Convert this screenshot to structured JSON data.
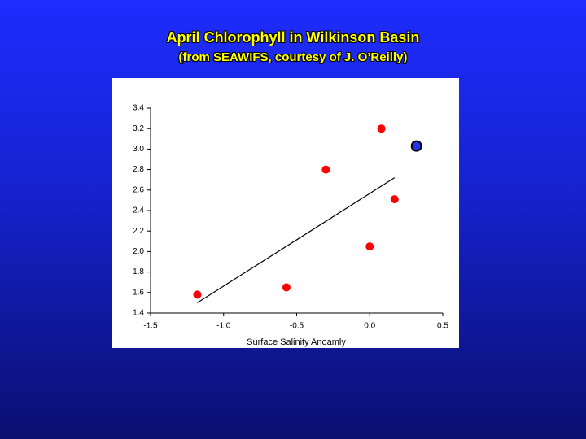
{
  "chart_data": {
    "type": "scatter",
    "title": "April Chlorophyll in Wilkinson Basin",
    "subtitle": "(from SEAWIFS, courtesy of J. O’Reilly)",
    "x_label": "Surface Salinity Anoamly",
    "xlim": [
      -1.5,
      0.5
    ],
    "xticks": [
      -1.5,
      {
        "value": -1,
        "label": "-1.0"
      },
      -0.5,
      {
        "value": 0,
        "label": "0.0"
      },
      0.5
    ],
    "ylim": [
      1.4,
      3.4
    ],
    "yticks": [
      1.4,
      1.6,
      1.8,
      {
        "value": 2,
        "label": "2.0"
      },
      2.2,
      2.4,
      2.6,
      2.8,
      {
        "value": 3,
        "label": "3.0"
      },
      3.2,
      3.4
    ],
    "grid": false,
    "series": [
      {
        "color": "#ff0000",
        "x": [
          -1.18,
          -0.57,
          -0.3,
          0.0,
          0.08,
          0.17
        ],
        "values": [
          1.58,
          1.65,
          2.8,
          2.05,
          3.2,
          2.51
        ]
      },
      {
        "color": "#2233ee",
        "edge": "#000000",
        "x": [
          0.32
        ],
        "values": [
          3.03
        ]
      }
    ],
    "fit_line": {
      "color": "#000000",
      "x": [
        -1.18,
        0.17
      ],
      "values": [
        1.5,
        2.72
      ]
    }
  }
}
